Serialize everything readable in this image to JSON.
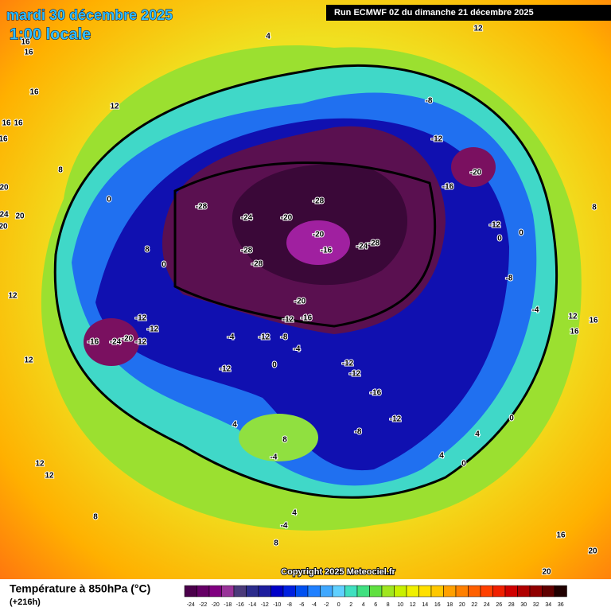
{
  "header": {
    "title": "mardi 30 décembre 2025",
    "subtitle": "1:00 locale",
    "run": "Run ECMWF 0Z du dimanche 21 décembre 2025"
  },
  "copyright": "Copyright 2025 Meteociel.fr",
  "legend": {
    "title": "Température à 850hPa (°C)",
    "subtitle": "(+216h)",
    "ticks": [
      -24,
      -22,
      -20,
      -18,
      -16,
      -14,
      -12,
      -10,
      -8,
      -6,
      -4,
      -2,
      0,
      2,
      4,
      6,
      8,
      10,
      12,
      14,
      16,
      18,
      20,
      22,
      24,
      26,
      28,
      30,
      32,
      34,
      36
    ],
    "colors": [
      "#4b004b",
      "#660066",
      "#800080",
      "#993399",
      "#4b3a7a",
      "#2c2c8c",
      "#1e1e9e",
      "#0000c8",
      "#0020e0",
      "#0050f0",
      "#2080ff",
      "#40a8ff",
      "#60d0ff",
      "#40e0c0",
      "#40e080",
      "#60e040",
      "#a0e620",
      "#c8f000",
      "#f0f000",
      "#ffe000",
      "#ffc800",
      "#ffa000",
      "#ff8000",
      "#ff6000",
      "#ff4000",
      "#f02000",
      "#d00000",
      "#b00000",
      "#900000",
      "#600000",
      "#200000"
    ]
  },
  "map": {
    "contour_labels": [
      -28,
      -24,
      -20,
      -28,
      -20,
      -16,
      -24,
      -28,
      -28,
      -28,
      -20,
      -16,
      -12,
      -12,
      -12,
      -12,
      -16,
      -24,
      -20,
      -4,
      -12,
      -8,
      -4,
      -12,
      0,
      -12,
      -12,
      -16,
      -12,
      -8,
      -12,
      -8,
      -20,
      -16,
      -12,
      0,
      -8,
      -4,
      0,
      12,
      16,
      16,
      8,
      12,
      4,
      16,
      16,
      12,
      8,
      0,
      8,
      0,
      12,
      12,
      4,
      -4,
      8,
      0,
      0,
      4,
      4,
      12,
      12,
      8,
      8,
      4,
      -4,
      16,
      20,
      20,
      20,
      20,
      24,
      16,
      16,
      16,
      20,
      16
    ]
  }
}
